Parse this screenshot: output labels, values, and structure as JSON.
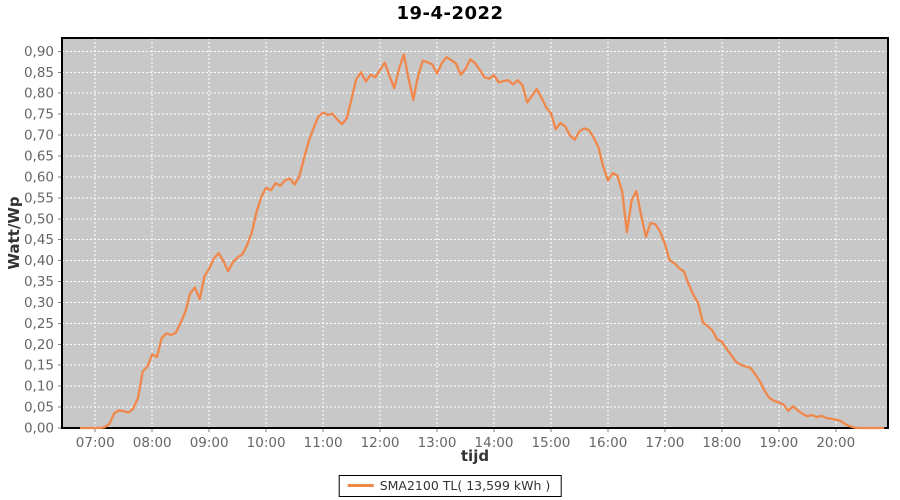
{
  "title": "19-4-2022",
  "axes": {
    "x_label": "tijd",
    "y_label": "Watt/Wp"
  },
  "legend": {
    "items": [
      {
        "label": "SMA2100 TL( 13,599 kWh )",
        "color": "#F0874B"
      }
    ]
  },
  "colors": {
    "plot_background": "#C8C8C8",
    "gridline": "#FFFFFF",
    "plot_border": "#000000",
    "tick_mark": "#808080",
    "tick_text": "#666666",
    "series": "#F0874B",
    "title_text": "#000000"
  },
  "chart_data": {
    "type": "line",
    "title": "19-4-2022",
    "xlabel": "tijd",
    "ylabel": "Watt/Wp",
    "grid": "white dashed, both axes",
    "legend_position": "bottom-center",
    "xlim_hours": [
      6.4167,
      20.9167
    ],
    "ylim": [
      0,
      0.932
    ],
    "x_ticks": [
      {
        "hour": 7,
        "label": "07:00"
      },
      {
        "hour": 8,
        "label": "08:00"
      },
      {
        "hour": 9,
        "label": "09:00"
      },
      {
        "hour": 10,
        "label": "10:00"
      },
      {
        "hour": 11,
        "label": "11:00"
      },
      {
        "hour": 12,
        "label": "12:00"
      },
      {
        "hour": 13,
        "label": "13:00"
      },
      {
        "hour": 14,
        "label": "14:00"
      },
      {
        "hour": 15,
        "label": "15:00"
      },
      {
        "hour": 16,
        "label": "16:00"
      },
      {
        "hour": 17,
        "label": "17:00"
      },
      {
        "hour": 18,
        "label": "18:00"
      },
      {
        "hour": 19,
        "label": "19:00"
      },
      {
        "hour": 20,
        "label": "20:00"
      }
    ],
    "y_ticks": [
      {
        "value": 0.0,
        "label": "0,00"
      },
      {
        "value": 0.05,
        "label": "0,05"
      },
      {
        "value": 0.1,
        "label": "0,10"
      },
      {
        "value": 0.15,
        "label": "0,15"
      },
      {
        "value": 0.2,
        "label": "0,20"
      },
      {
        "value": 0.25,
        "label": "0,25"
      },
      {
        "value": 0.3,
        "label": "0,30"
      },
      {
        "value": 0.35,
        "label": "0,35"
      },
      {
        "value": 0.4,
        "label": "0,40"
      },
      {
        "value": 0.45,
        "label": "0,45"
      },
      {
        "value": 0.5,
        "label": "0,50"
      },
      {
        "value": 0.55,
        "label": "0,55"
      },
      {
        "value": 0.6,
        "label": "0,60"
      },
      {
        "value": 0.65,
        "label": "0,65"
      },
      {
        "value": 0.7,
        "label": "0,70"
      },
      {
        "value": 0.75,
        "label": "0,75"
      },
      {
        "value": 0.8,
        "label": "0,80"
      },
      {
        "value": 0.85,
        "label": "0,85"
      },
      {
        "value": 0.9,
        "label": "0,90"
      }
    ],
    "series": [
      {
        "name": "SMA2100 TL( 13,599 kWh )",
        "color": "#F0874B",
        "x_start_hour": 6.75,
        "x_step_minutes": 5,
        "values": [
          0,
          0,
          0,
          0,
          0,
          0.002,
          0.01,
          0.035,
          0.042,
          0.04,
          0.037,
          0.046,
          0.072,
          0.135,
          0.147,
          0.176,
          0.17,
          0.215,
          0.226,
          0.222,
          0.228,
          0.252,
          0.278,
          0.322,
          0.336,
          0.308,
          0.362,
          0.381,
          0.405,
          0.418,
          0.399,
          0.375,
          0.396,
          0.408,
          0.415,
          0.437,
          0.468,
          0.517,
          0.553,
          0.574,
          0.568,
          0.585,
          0.579,
          0.592,
          0.596,
          0.582,
          0.602,
          0.645,
          0.686,
          0.717,
          0.744,
          0.754,
          0.748,
          0.751,
          0.737,
          0.726,
          0.74,
          0.788,
          0.834,
          0.85,
          0.828,
          0.844,
          0.838,
          0.856,
          0.873,
          0.841,
          0.812,
          0.858,
          0.893,
          0.836,
          0.784,
          0.841,
          0.878,
          0.874,
          0.869,
          0.847,
          0.872,
          0.886,
          0.879,
          0.871,
          0.844,
          0.858,
          0.881,
          0.872,
          0.856,
          0.838,
          0.835,
          0.843,
          0.826,
          0.829,
          0.831,
          0.821,
          0.831,
          0.819,
          0.778,
          0.794,
          0.81,
          0.789,
          0.766,
          0.752,
          0.714,
          0.729,
          0.721,
          0.699,
          0.689,
          0.709,
          0.716,
          0.712,
          0.694,
          0.671,
          0.625,
          0.592,
          0.609,
          0.603,
          0.565,
          0.468,
          0.545,
          0.566,
          0.509,
          0.457,
          0.49,
          0.487,
          0.469,
          0.44,
          0.401,
          0.394,
          0.382,
          0.374,
          0.344,
          0.318,
          0.299,
          0.252,
          0.244,
          0.233,
          0.212,
          0.206,
          0.189,
          0.174,
          0.158,
          0.151,
          0.147,
          0.144,
          0.129,
          0.112,
          0.089,
          0.072,
          0.065,
          0.061,
          0.056,
          0.041,
          0.052,
          0.042,
          0.034,
          0.028,
          0.031,
          0.026,
          0.029,
          0.024,
          0.022,
          0.02,
          0.017,
          0.009,
          0.004,
          0.001,
          0,
          0,
          0,
          0,
          0,
          0
        ]
      }
    ]
  }
}
